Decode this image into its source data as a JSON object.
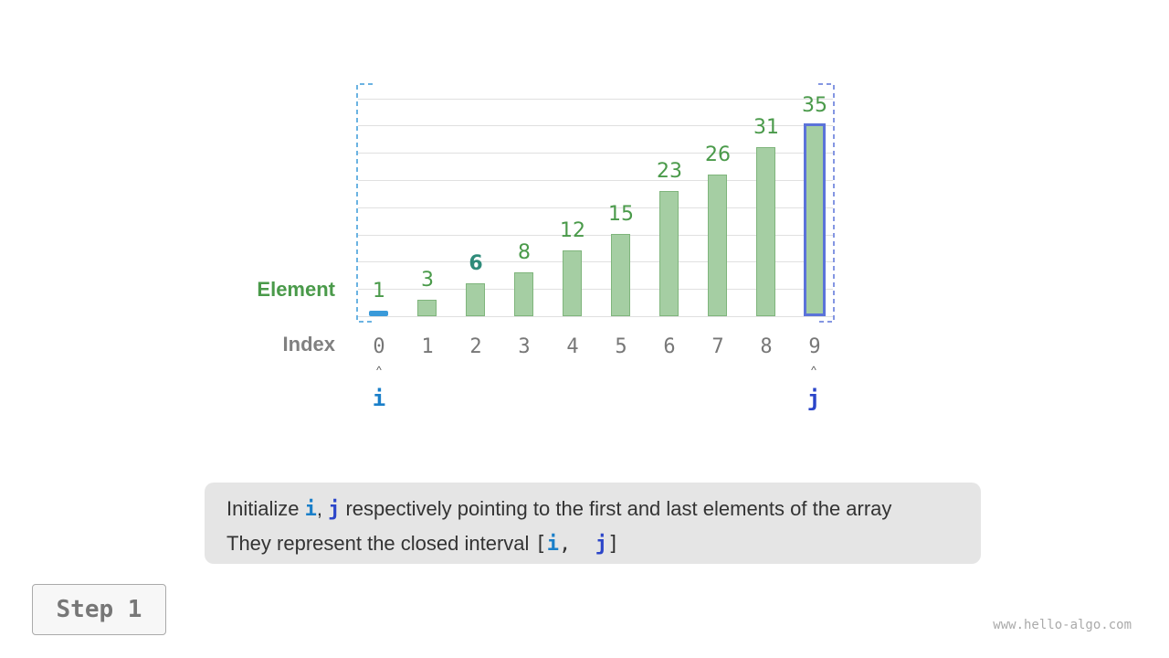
{
  "diagram": {
    "row_labels": {
      "element": "Element",
      "index": "Index"
    },
    "values": [
      1,
      3,
      6,
      8,
      12,
      15,
      23,
      26,
      31,
      35
    ],
    "indices": [
      "0",
      "1",
      "2",
      "3",
      "4",
      "5",
      "6",
      "7",
      "8",
      "9"
    ],
    "pointers": {
      "i": {
        "label": "i",
        "index": 0,
        "color": "#1a7fc9"
      },
      "j": {
        "label": "j",
        "index": 9,
        "color": "#2b45c9"
      }
    },
    "arrow_glyph": "^",
    "colors": {
      "bar": "#a5cea3",
      "value_text": "#4a9a4a",
      "highlight_value": "#2e8b7a",
      "i_bracket": "#3a9ad9",
      "j_bracket": "#5b73d9",
      "element_label": "#4a9a4a",
      "index_label": "#808080"
    }
  },
  "caption": {
    "line1_pre": "Initialize ",
    "line1_i": "i",
    "line1_comma": ", ",
    "line1_j": "j",
    "line1_post": " respectively pointing to the first and last elements of the array",
    "line2_pre": "They represent the closed interval ",
    "line2_open": "[",
    "line2_i": "i",
    "line2_comma": ",  ",
    "line2_j": "j",
    "line2_close": "]"
  },
  "step_button": "Step 1",
  "watermark": "www.hello-algo.com"
}
